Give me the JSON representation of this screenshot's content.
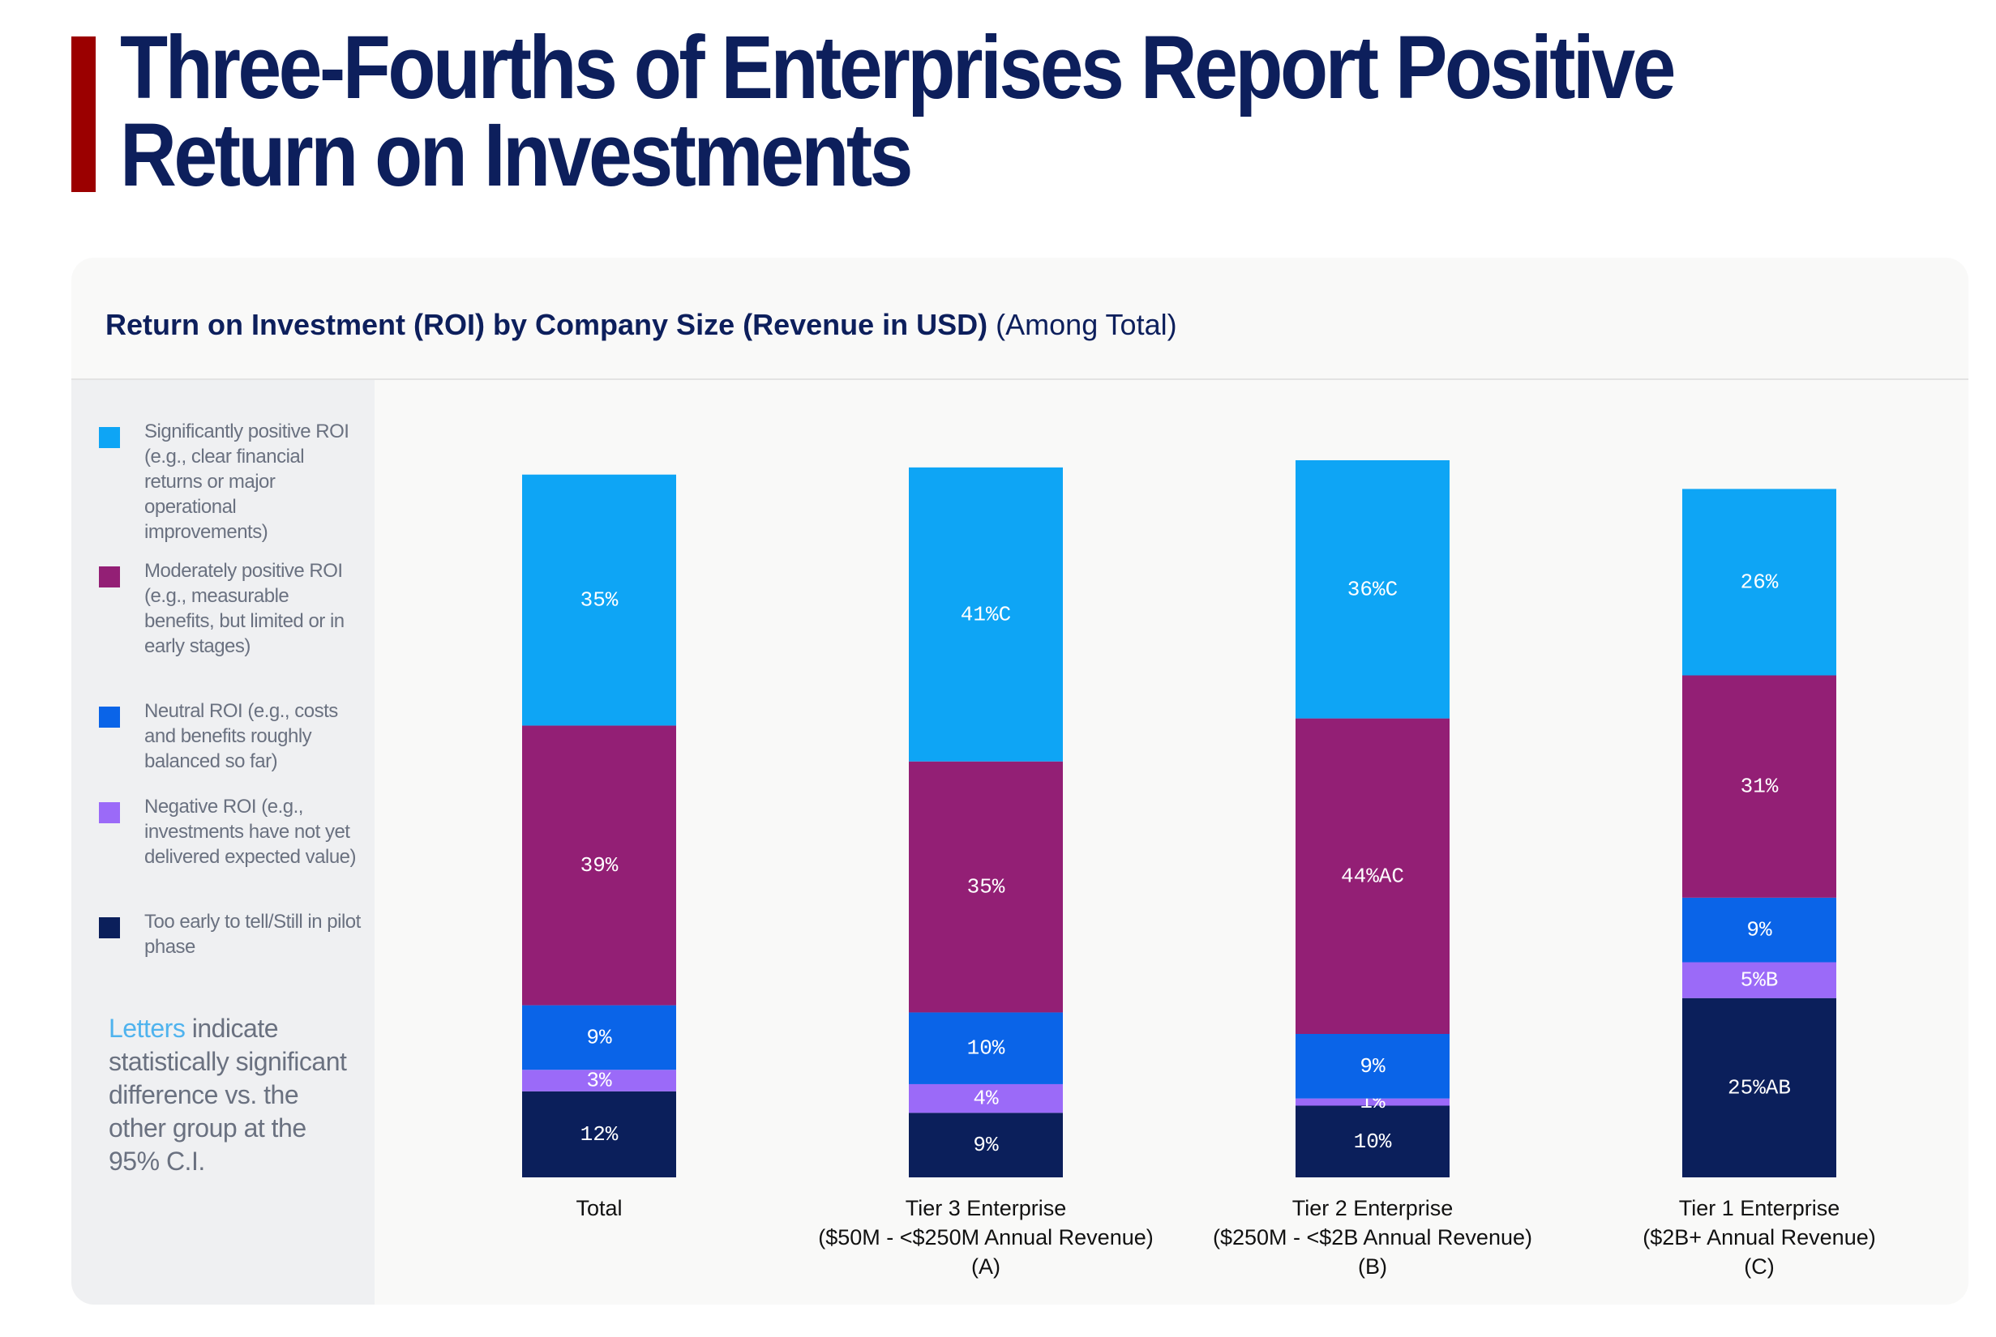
{
  "page": {
    "title": "Three-Fourths of Enterprises Report Positive Return on Investments"
  },
  "chart_title": {
    "bold": "Return on Investment (ROI) by Company Size (Revenue in USD)",
    "normal": "(Among Total)"
  },
  "legend": [
    {
      "label": "Significantly positive ROI (e.g., clear financial returns or major operational improvements)",
      "color": "#0ea5f5"
    },
    {
      "label": "Moderately positive ROI (e.g., measurable benefits, but limited or in early stages)",
      "color": "#931f75"
    },
    {
      "label": "Neutral ROI (e.g., costs and benefits roughly balanced so far)",
      "color": "#0a64e8"
    },
    {
      "label": "Negative ROI (e.g., investments have not yet delivered expected value)",
      "color": "#9b6af8"
    },
    {
      "label": "Too early to tell/Still in pilot phase",
      "color": "#0b1f5b"
    }
  ],
  "note": {
    "highlight": "Letters",
    "rest": " indicate statistically significant difference vs. the other group at the 95% C.I."
  },
  "chart_data": {
    "type": "bar",
    "stacked": true,
    "categories": [
      [
        "Total"
      ],
      [
        "Tier 3 Enterprise",
        "($50M - <$250M Annual Revenue)",
        "(A)"
      ],
      [
        "Tier 2 Enterprise",
        "($250M - <$2B Annual Revenue)",
        "(B)"
      ],
      [
        "Tier 1 Enterprise",
        "($2B+ Annual Revenue)",
        "(C)"
      ]
    ],
    "series": [
      {
        "name": "Too early to tell/Still in pilot phase",
        "color": "#0b1f5b",
        "values": [
          12,
          9,
          10,
          25
        ],
        "labels": [
          "12%",
          "9%",
          "10%",
          "25%AB"
        ]
      },
      {
        "name": "Negative ROI (e.g., investments have not yet delivered expected value)",
        "color": "#9b6af8",
        "values": [
          3,
          4,
          1,
          5
        ],
        "labels": [
          "3%",
          "4%",
          "1%",
          "5%B"
        ]
      },
      {
        "name": "Neutral ROI (e.g., costs and benefits roughly balanced so far)",
        "color": "#0a64e8",
        "values": [
          9,
          10,
          9,
          9
        ],
        "labels": [
          "9%",
          "10%",
          "9%",
          "9%"
        ]
      },
      {
        "name": "Moderately positive ROI (e.g., measurable benefits, but limited or in early stages)",
        "color": "#931f75",
        "values": [
          39,
          35,
          44,
          31
        ],
        "labels": [
          "39%",
          "35%",
          "44%AC",
          "31%"
        ]
      },
      {
        "name": "Significantly positive ROI (e.g., clear financial returns or major operational improvements)",
        "color": "#0ea5f5",
        "values": [
          35,
          41,
          36,
          26
        ],
        "labels": [
          "35%",
          "41%C",
          "36%C",
          "26%"
        ]
      }
    ],
    "ylim": [
      0,
      100
    ],
    "grid": false,
    "legend_position": "left"
  }
}
